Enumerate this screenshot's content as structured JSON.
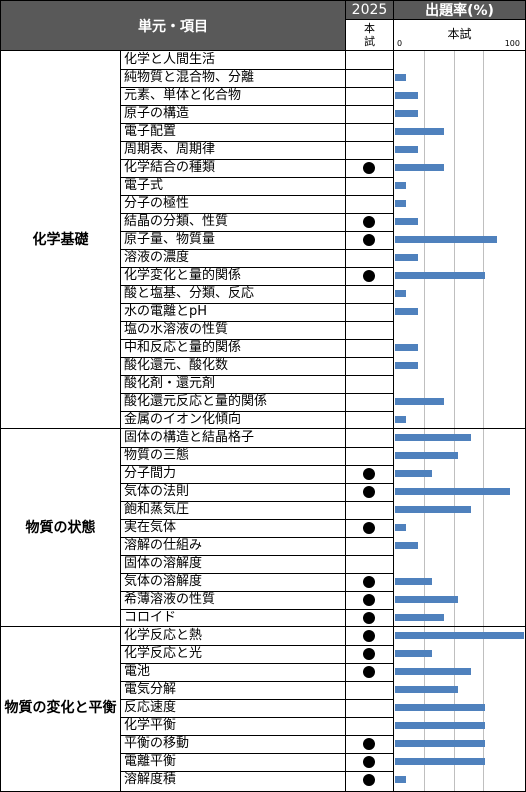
{
  "header": {
    "unit_item": "単元・項目",
    "year": "2025",
    "honshi_vertical": [
      "本",
      "試"
    ],
    "rate_title": "出題率(%)",
    "rate_subtitle": "本試",
    "scale_min": "0",
    "scale_max": "100"
  },
  "groups": [
    {
      "label": "化学基礎",
      "items": [
        {
          "name": "化学と人間生活",
          "dot": false,
          "rate": 0
        },
        {
          "name": "純物質と混合物、分離",
          "dot": false,
          "rate": 9
        },
        {
          "name": "元素、単体と化合物",
          "dot": false,
          "rate": 20
        },
        {
          "name": "原子の構造",
          "dot": false,
          "rate": 20
        },
        {
          "name": "電子配置",
          "dot": false,
          "rate": 42
        },
        {
          "name": "周期表、周期律",
          "dot": false,
          "rate": 20
        },
        {
          "name": "化学結合の種類",
          "dot": true,
          "rate": 42
        },
        {
          "name": "電子式",
          "dot": false,
          "rate": 9
        },
        {
          "name": "分子の極性",
          "dot": false,
          "rate": 9
        },
        {
          "name": "結晶の分類、性質",
          "dot": true,
          "rate": 20
        },
        {
          "name": "原子量、物質量",
          "dot": true,
          "rate": 87
        },
        {
          "name": "溶液の濃度",
          "dot": false,
          "rate": 20
        },
        {
          "name": "化学変化と量的関係",
          "dot": true,
          "rate": 77
        },
        {
          "name": "酸と塩基、分類、反応",
          "dot": false,
          "rate": 9
        },
        {
          "name": "水の電離とpH",
          "dot": false,
          "rate": 20
        },
        {
          "name": "塩の水溶液の性質",
          "dot": false,
          "rate": 0
        },
        {
          "name": "中和反応と量的関係",
          "dot": false,
          "rate": 20
        },
        {
          "name": "酸化還元、酸化数",
          "dot": false,
          "rate": 20
        },
        {
          "name": "酸化剤・還元剤",
          "dot": false,
          "rate": 0
        },
        {
          "name": "酸化還元反応と量的関係",
          "dot": false,
          "rate": 42
        },
        {
          "name": "金属のイオン化傾向",
          "dot": false,
          "rate": 9
        }
      ]
    },
    {
      "label": "物質の状態",
      "items": [
        {
          "name": "固体の構造と結晶格子",
          "dot": false,
          "rate": 65
        },
        {
          "name": "物質の三態",
          "dot": false,
          "rate": 54
        },
        {
          "name": "分子間力",
          "dot": true,
          "rate": 32
        },
        {
          "name": "気体の法則",
          "dot": true,
          "rate": 98
        },
        {
          "name": "飽和蒸気圧",
          "dot": false,
          "rate": 65
        },
        {
          "name": "実在気体",
          "dot": true,
          "rate": 9
        },
        {
          "name": "溶解の仕組み",
          "dot": false,
          "rate": 20
        },
        {
          "name": "固体の溶解度",
          "dot": false,
          "rate": 0
        },
        {
          "name": "気体の溶解度",
          "dot": true,
          "rate": 32
        },
        {
          "name": "希薄溶液の性質",
          "dot": true,
          "rate": 54
        },
        {
          "name": "コロイド",
          "dot": true,
          "rate": 42
        }
      ]
    },
    {
      "label": "物質の変化と平衡",
      "items": [
        {
          "name": "化学反応と熱",
          "dot": true,
          "rate": 110
        },
        {
          "name": "化学反応と光",
          "dot": true,
          "rate": 32
        },
        {
          "name": "電池",
          "dot": true,
          "rate": 65
        },
        {
          "name": "電気分解",
          "dot": false,
          "rate": 54
        },
        {
          "name": "反応速度",
          "dot": false,
          "rate": 77
        },
        {
          "name": "化学平衡",
          "dot": false,
          "rate": 77
        },
        {
          "name": "平衡の移動",
          "dot": true,
          "rate": 77
        },
        {
          "name": "電離平衡",
          "dot": true,
          "rate": 77
        },
        {
          "name": "溶解度積",
          "dot": true,
          "rate": 9
        }
      ]
    }
  ],
  "colors": {
    "header_bg": "#595959",
    "bar": "#4f81bd"
  }
}
